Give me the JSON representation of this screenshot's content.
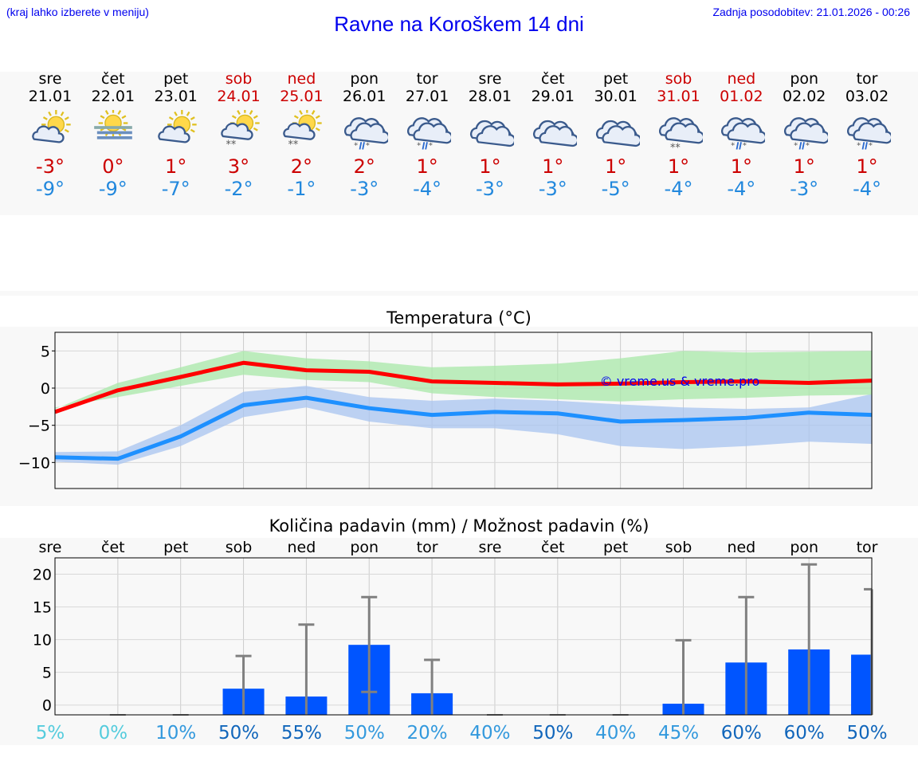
{
  "header": {
    "left_note": "(kraj lahko izberete v meniju)",
    "title": "Ravne na Koroškem 14 dni",
    "updated": "Zadnja posodobitev: 21.01.2026 - 00:26"
  },
  "colors": {
    "weekend": "#cc0000",
    "max_temp": "#cc0000",
    "min_temp": "#2288dd",
    "max_line": "#ff0000",
    "min_line": "#1e90ff",
    "max_band": "#a8e8a8",
    "min_band": "#a8c4f0",
    "overlap_band": "#7ec8b0",
    "bar": "#0055ff",
    "errorbar": "#808080"
  },
  "days": [
    {
      "name": "sre",
      "date": "21.01",
      "weekend": false,
      "icon": "sun-cloud-icon",
      "tmax": "-3°",
      "tmin": "-9°"
    },
    {
      "name": "čet",
      "date": "22.01",
      "weekend": false,
      "icon": "sun-fog-icon",
      "tmax": "0°",
      "tmin": "-9°"
    },
    {
      "name": "pet",
      "date": "23.01",
      "weekend": false,
      "icon": "sun-cloud-icon",
      "tmax": "1°",
      "tmin": "-7°"
    },
    {
      "name": "sob",
      "date": "24.01",
      "weekend": true,
      "icon": "sun-cloud-snow-icon",
      "tmax": "3°",
      "tmin": "-2°"
    },
    {
      "name": "ned",
      "date": "25.01",
      "weekend": true,
      "icon": "sun-cloud-snow-icon",
      "tmax": "2°",
      "tmin": "-1°"
    },
    {
      "name": "pon",
      "date": "26.01",
      "weekend": false,
      "icon": "cloud-sleet-icon",
      "tmax": "2°",
      "tmin": "-3°"
    },
    {
      "name": "tor",
      "date": "27.01",
      "weekend": false,
      "icon": "cloud-sleet-icon",
      "tmax": "1°",
      "tmin": "-4°"
    },
    {
      "name": "sre",
      "date": "28.01",
      "weekend": false,
      "icon": "cloud-icon",
      "tmax": "1°",
      "tmin": "-3°"
    },
    {
      "name": "čet",
      "date": "29.01",
      "weekend": false,
      "icon": "cloud-icon",
      "tmax": "1°",
      "tmin": "-3°"
    },
    {
      "name": "pet",
      "date": "30.01",
      "weekend": false,
      "icon": "cloud-icon",
      "tmax": "1°",
      "tmin": "-5°"
    },
    {
      "name": "sob",
      "date": "31.01",
      "weekend": true,
      "icon": "cloud-snow-icon",
      "tmax": "1°",
      "tmin": "-4°"
    },
    {
      "name": "ned",
      "date": "01.02",
      "weekend": true,
      "icon": "cloud-sleet-icon",
      "tmax": "1°",
      "tmin": "-4°"
    },
    {
      "name": "pon",
      "date": "02.02",
      "weekend": false,
      "icon": "cloud-sleet-icon",
      "tmax": "1°",
      "tmin": "-3°"
    },
    {
      "name": "tor",
      "date": "03.02",
      "weekend": false,
      "icon": "cloud-sleet-icon",
      "tmax": "1°",
      "tmin": "-4°"
    }
  ],
  "chart_data": [
    {
      "type": "line",
      "title": "Temperatura (°C)",
      "watermark": "© vreme.us & vreme.pro",
      "ylim": [
        -13.5,
        7.5
      ],
      "yticks": [
        5,
        0,
        -5,
        -10
      ],
      "ytick_labels": [
        "5",
        "0",
        "−5",
        "−10"
      ],
      "x": [
        0,
        1,
        2,
        3,
        4,
        5,
        6,
        7,
        8,
        9,
        10,
        11,
        12,
        13
      ],
      "series": [
        {
          "name": "max",
          "values": [
            -3.2,
            -0.3,
            1.5,
            3.4,
            2.4,
            2.2,
            0.9,
            0.7,
            0.5,
            0.6,
            0.8,
            0.9,
            0.7,
            1.0
          ],
          "band_low": [
            -2.6,
            -1.2,
            0.3,
            1.8,
            1.1,
            0.8,
            -0.7,
            -1.2,
            -1.5,
            -1.8,
            -1.5,
            -1.3,
            -1.0,
            -0.9
          ],
          "band_high": [
            -2.8,
            0.7,
            2.8,
            5.0,
            4.0,
            3.6,
            2.8,
            3.0,
            3.3,
            4.0,
            5.0,
            4.8,
            4.9,
            5.0
          ]
        },
        {
          "name": "min",
          "values": [
            -9.3,
            -9.5,
            -6.5,
            -2.3,
            -1.3,
            -2.7,
            -3.6,
            -3.2,
            -3.4,
            -4.5,
            -4.3,
            -4.0,
            -3.3,
            -3.6
          ],
          "band_low": [
            -9.9,
            -10.3,
            -7.8,
            -3.9,
            -2.6,
            -4.5,
            -5.4,
            -5.4,
            -6.2,
            -7.8,
            -8.2,
            -7.8,
            -7.2,
            -7.5
          ],
          "band_high": [
            -8.6,
            -8.5,
            -5.0,
            -0.5,
            0.3,
            -1.2,
            -1.7,
            -1.4,
            -1.7,
            -2.2,
            -2.6,
            -2.8,
            -2.6,
            -0.8
          ]
        }
      ]
    },
    {
      "type": "bar",
      "title": "Količina padavin (mm) / Možnost padavin (%)",
      "categories": [
        "sre",
        "čet",
        "pet",
        "sob",
        "ned",
        "pon",
        "tor",
        "sre",
        "čet",
        "pet",
        "sob",
        "ned",
        "pon",
        "tor"
      ],
      "ylim": [
        -1.5,
        22.5
      ],
      "yticks": [
        20,
        15,
        10,
        5,
        0
      ],
      "values": [
        0,
        0,
        0,
        2.5,
        1.3,
        9.2,
        1.8,
        0,
        0,
        0,
        0.2,
        6.5,
        8.5,
        7.7
      ],
      "error_low": [
        0,
        0,
        0,
        0,
        0,
        2.0,
        0,
        0,
        0,
        0,
        0,
        0,
        0,
        0
      ],
      "error_high": [
        0,
        0,
        0,
        7.5,
        12.3,
        16.5,
        6.9,
        0,
        0,
        0,
        9.9,
        16.5,
        21.5,
        17.7
      ],
      "chance": [
        "5%",
        "0%",
        "10%",
        "50%",
        "55%",
        "50%",
        "20%",
        "40%",
        "50%",
        "40%",
        "45%",
        "60%",
        "60%",
        "50%"
      ],
      "chance_colors": [
        "#55ccdd",
        "#55ccdd",
        "#3399dd",
        "#1166bb",
        "#1166bb",
        "#3399dd",
        "#3399dd",
        "#3399dd",
        "#1166bb",
        "#3399dd",
        "#3399dd",
        "#1166bb",
        "#1166bb",
        "#1166bb"
      ]
    }
  ]
}
